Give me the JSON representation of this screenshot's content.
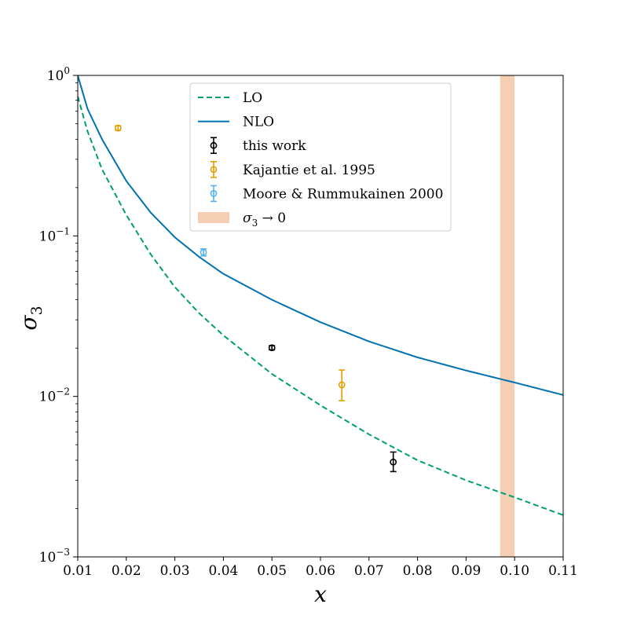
{
  "chart_data": {
    "type": "line",
    "xlabel": "x",
    "ylabel": "σ",
    "ylabel_subscript": "3",
    "xlim": [
      0.01,
      0.11
    ],
    "ylim": [
      0.001,
      1
    ],
    "yscale": "log",
    "x_ticks": [
      0.01,
      0.02,
      0.03,
      0.04,
      0.05,
      0.06,
      0.07,
      0.08,
      0.09,
      0.1,
      0.11
    ],
    "x_tick_labels": [
      "0.01",
      "0.02",
      "0.03",
      "0.04",
      "0.05",
      "0.06",
      "0.07",
      "0.08",
      "0.09",
      "0.10",
      "0.11"
    ],
    "y_ticks": [
      {
        "value": 1,
        "base": "10",
        "exp": "0"
      },
      {
        "value": 0.1,
        "base": "10",
        "exp": "−1"
      },
      {
        "value": 0.01,
        "base": "10",
        "exp": "−2"
      },
      {
        "value": 0.001,
        "base": "10",
        "exp": "−3"
      }
    ],
    "series": [
      {
        "name": "LO",
        "style": "dashed",
        "color": "#009e73",
        "x": [
          0.01,
          0.012,
          0.015,
          0.02,
          0.025,
          0.03,
          0.035,
          0.04,
          0.05,
          0.06,
          0.07,
          0.08,
          0.09,
          0.1,
          0.11
        ],
        "y": [
          0.74,
          0.45,
          0.26,
          0.135,
          0.077,
          0.048,
          0.033,
          0.024,
          0.0138,
          0.0088,
          0.0058,
          0.004,
          0.003,
          0.00235,
          0.00182
        ]
      },
      {
        "name": "NLO",
        "style": "solid",
        "color": "#0072b2",
        "x": [
          0.01,
          0.012,
          0.015,
          0.02,
          0.025,
          0.03,
          0.035,
          0.04,
          0.05,
          0.06,
          0.07,
          0.08,
          0.09,
          0.1,
          0.11
        ],
        "y": [
          1.0,
          0.62,
          0.4,
          0.22,
          0.14,
          0.098,
          0.074,
          0.058,
          0.04,
          0.029,
          0.022,
          0.0175,
          0.0145,
          0.0122,
          0.0102
        ]
      }
    ],
    "points": [
      {
        "name": "this work",
        "color": "#000000",
        "data": [
          {
            "x": 0.05,
            "y": 0.0201,
            "lo": 0.0195,
            "hi": 0.0207
          },
          {
            "x": 0.075,
            "y": 0.0039,
            "lo": 0.0034,
            "hi": 0.0045
          }
        ]
      },
      {
        "name": "Kajantie et al. 1995",
        "color": "#e69f00",
        "data": [
          {
            "x": 0.0183,
            "y": 0.47,
            "lo": 0.455,
            "hi": 0.485
          },
          {
            "x": 0.0644,
            "y": 0.0118,
            "lo": 0.0094,
            "hi": 0.0146
          }
        ]
      },
      {
        "name": "Moore & Rummukainen 2000",
        "color": "#56b4e9",
        "data": [
          {
            "x": 0.0359,
            "y": 0.079,
            "lo": 0.075,
            "hi": 0.083
          }
        ]
      }
    ],
    "band": {
      "name": "σ3 → 0",
      "x_min": 0.097,
      "x_max": 0.1,
      "color": "#f5cfb3"
    },
    "legend": {
      "position": "top-center",
      "entries": [
        {
          "label": "LO",
          "kind": "dashed",
          "color": "#009e73"
        },
        {
          "label": "NLO",
          "kind": "solid",
          "color": "#0072b2"
        },
        {
          "label": "this work",
          "kind": "errorbar",
          "color": "#000000"
        },
        {
          "label": "Kajantie et al. 1995",
          "kind": "errorbar",
          "color": "#e69f00"
        },
        {
          "label": "Moore & Rummukainen 2000",
          "kind": "errorbar",
          "color": "#56b4e9"
        },
        {
          "label": "σ",
          "sub": "3",
          "suffix": " → 0",
          "kind": "band",
          "color": "#f5cfb3"
        }
      ]
    }
  }
}
